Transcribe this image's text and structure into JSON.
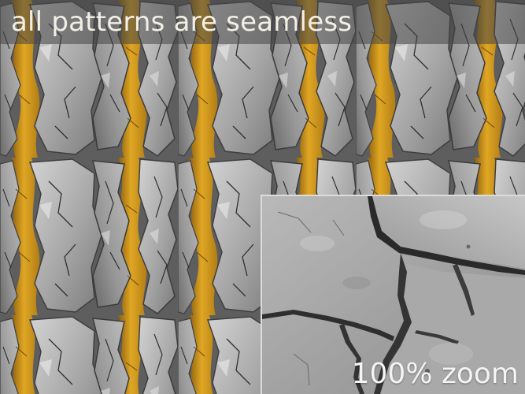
{
  "title": "all patterns are seamless",
  "zoom_label": "100% zoom",
  "colors": {
    "stone_light": "#c7c7c7",
    "stone_mid": "#9a9a9a",
    "stone_dark": "#5b5b5b",
    "ochre": "#d9a11f",
    "ochre_dark": "#9b6a10",
    "title_text": "#f3efe6",
    "zoom_text": "#f4f4f4"
  }
}
